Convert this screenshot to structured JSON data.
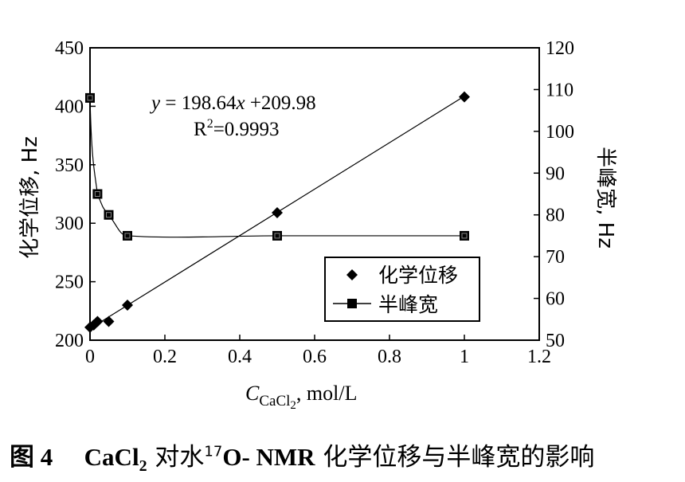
{
  "chart_data": {
    "type": "line",
    "x_label_main": "C",
    "x_label_sub": "CaCl",
    "x_label_sub2": "2",
    "x_label_unit": ", mol/L",
    "y_left_label": "化学位移, Hz",
    "y_right_label": "半峰宽, Hz",
    "x_ticks": [
      "0",
      "0.2",
      "0.4",
      "0.6",
      "0.8",
      "1",
      "1.2"
    ],
    "y_left_ticks": [
      "200",
      "250",
      "300",
      "350",
      "400",
      "450"
    ],
    "y_right_ticks": [
      "50",
      "60",
      "70",
      "80",
      "90",
      "100",
      "110",
      "120"
    ],
    "xlim": [
      0,
      1.2
    ],
    "ylim_left": [
      200,
      450
    ],
    "ylim_right": [
      50,
      120
    ],
    "equation_prefix": "y",
    "equation_mid": " = 198.64",
    "equation_x": "x",
    "equation_suffix": " +209.98",
    "r2_prefix": "R",
    "r2_sup": "2",
    "r2_suffix": "=0.9993",
    "series": [
      {
        "name": "化学位移",
        "axis": "left",
        "marker": "diamond",
        "x": [
          0,
          0.01,
          0.02,
          0.05,
          0.1,
          0.5,
          1.0
        ],
        "y": [
          211,
          213,
          216,
          216,
          230,
          309,
          408
        ],
        "fit": {
          "slope": 198.64,
          "intercept": 209.98
        }
      },
      {
        "name": "半峰宽",
        "axis": "right",
        "marker": "square",
        "x": [
          0,
          0.02,
          0.05,
          0.1,
          0.5,
          1.0
        ],
        "y": [
          108,
          85,
          80,
          75,
          75,
          75
        ]
      }
    ]
  },
  "caption": {
    "fig": "图 4",
    "formula": "CaCl",
    "formula_sub": "2",
    "text1": " 对水",
    "sup": "17",
    "text2": "O- NMR",
    "text3": " 化学位移与半峰宽的影响"
  }
}
